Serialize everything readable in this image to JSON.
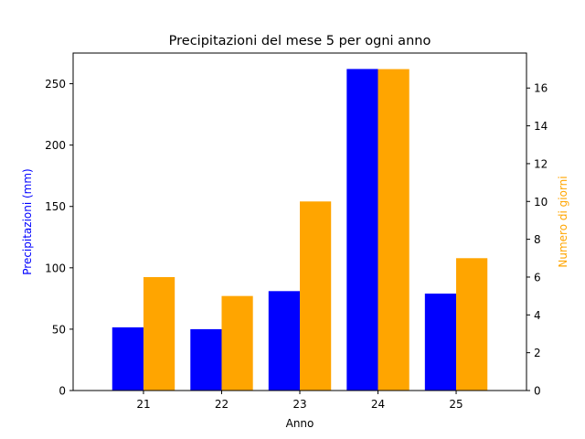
{
  "chart_data": {
    "type": "bar",
    "title": "Precipitazioni del mese 5 per ogni anno",
    "xlabel": "Anno",
    "ylabel_left": "Precipitazioni (mm)",
    "ylabel_right": "Numero di giorni",
    "categories": [
      "21",
      "22",
      "23",
      "24",
      "25"
    ],
    "series": [
      {
        "name": "Precipitazioni (mm)",
        "axis": "left",
        "color": "#0000ff",
        "values": [
          51.5,
          50,
          81,
          262,
          79
        ]
      },
      {
        "name": "Numero di giorni",
        "axis": "right",
        "color": "#ffa500",
        "values": [
          6,
          5,
          10,
          17,
          7
        ]
      }
    ],
    "ylim_left": [
      0,
      275
    ],
    "ylim_right": [
      0,
      17.85
    ],
    "yticks_left": [
      0,
      50,
      100,
      150,
      200,
      250
    ],
    "yticks_right": [
      0,
      2,
      4,
      6,
      8,
      10,
      12,
      14,
      16
    ],
    "grid": false,
    "legend": "none"
  }
}
